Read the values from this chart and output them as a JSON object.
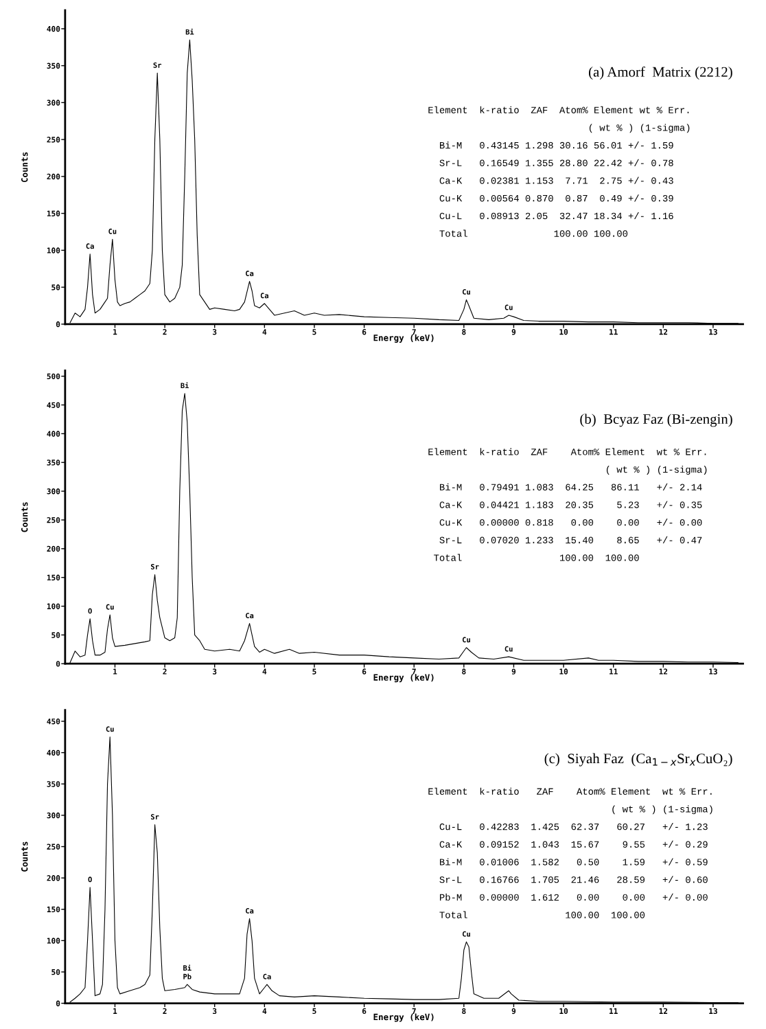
{
  "chart_data": [
    {
      "type": "line",
      "title": "(a) Amorf  Matrix (2212)",
      "xlabel": "Energy (keV)",
      "ylabel": "Counts",
      "xlim": [
        0,
        13.6
      ],
      "ylim": [
        0,
        425
      ],
      "xticks": [
        1,
        2,
        3,
        4,
        5,
        6,
        7,
        8,
        9,
        10,
        11,
        12,
        13
      ],
      "yticks": [
        0,
        50,
        100,
        150,
        200,
        250,
        300,
        350,
        400
      ],
      "grid": false,
      "legend": false,
      "series": [
        {
          "color": "#000000",
          "x": [
            0.1,
            0.2,
            0.3,
            0.4,
            0.45,
            0.5,
            0.55,
            0.6,
            0.7,
            0.8,
            0.85,
            0.9,
            0.95,
            1.0,
            1.05,
            1.1,
            1.2,
            1.3,
            1.4,
            1.5,
            1.6,
            1.7,
            1.75,
            1.8,
            1.85,
            1.9,
            1.95,
            2.0,
            2.1,
            2.2,
            2.3,
            2.35,
            2.4,
            2.45,
            2.5,
            2.55,
            2.6,
            2.65,
            2.7,
            2.8,
            2.9,
            3.0,
            3.2,
            3.4,
            3.5,
            3.6,
            3.7,
            3.75,
            3.8,
            3.9,
            4.0,
            4.1,
            4.2,
            4.4,
            4.6,
            4.8,
            5.0,
            5.2,
            5.5,
            6.0,
            6.5,
            7.0,
            7.5,
            7.9,
            8.0,
            8.05,
            8.1,
            8.2,
            8.5,
            8.8,
            8.9,
            9.0,
            9.2,
            9.5,
            10,
            10.5,
            11,
            11.5,
            12,
            12.5,
            13,
            13.5
          ],
          "values": [
            2,
            15,
            10,
            20,
            50,
            95,
            40,
            15,
            20,
            30,
            35,
            80,
            115,
            60,
            30,
            25,
            28,
            30,
            35,
            40,
            45,
            55,
            100,
            250,
            340,
            250,
            100,
            40,
            30,
            35,
            50,
            80,
            200,
            340,
            385,
            330,
            250,
            120,
            40,
            30,
            20,
            22,
            20,
            18,
            20,
            30,
            58,
            45,
            25,
            22,
            28,
            20,
            12,
            15,
            18,
            12,
            15,
            12,
            13,
            10,
            9,
            8,
            6,
            5,
            20,
            33,
            25,
            8,
            6,
            8,
            12,
            10,
            5,
            4,
            4,
            3,
            3,
            2,
            2,
            2,
            1,
            1
          ]
        }
      ],
      "annotations": [
        {
          "text": "Ca",
          "x": 0.5,
          "y": 95
        },
        {
          "text": "Cu",
          "x": 0.95,
          "y": 115
        },
        {
          "text": "Sr",
          "x": 1.85,
          "y": 340
        },
        {
          "text": "Bi",
          "x": 2.5,
          "y": 385
        },
        {
          "text": "Ca",
          "x": 3.7,
          "y": 58
        },
        {
          "text": "Ca",
          "x": 4.0,
          "y": 28
        },
        {
          "text": "Cu",
          "x": 8.05,
          "y": 33
        },
        {
          "text": "Cu",
          "x": 8.9,
          "y": 12
        },
        "Element  k-ratio  ZAF  Atom% Element wt % Err.",
        "                            ( wt % ) (1-sigma)",
        "  Bi-M   0.43145 1.298 30.16 56.01 +/- 1.59",
        "  Sr-L   0.16549 1.355 28.80 22.42 +/- 0.78",
        "  Ca-K   0.02381 1.153  7.71  2.75 +/- 0.43",
        "  Cu-K   0.00564 0.870  0.87  0.49 +/- 0.39",
        "  Cu-L   0.08913 2.05  32.47 18.34 +/- 1.16",
        "  Total               100.00 100.00"
      ]
    },
    {
      "type": "line",
      "title": "(b)  Bcyaz Faz (Bi-zengin)",
      "xlabel": "Energy (keV)",
      "ylabel": "Counts",
      "xlim": [
        0,
        13.6
      ],
      "ylim": [
        0,
        510
      ],
      "xticks": [
        1,
        2,
        3,
        4,
        5,
        6,
        7,
        8,
        9,
        10,
        11,
        12,
        13
      ],
      "yticks": [
        0,
        50,
        100,
        150,
        200,
        250,
        300,
        350,
        400,
        450,
        500
      ],
      "grid": false,
      "legend": false,
      "series": [
        {
          "color": "#000000",
          "x": [
            0.1,
            0.15,
            0.2,
            0.3,
            0.4,
            0.45,
            0.5,
            0.55,
            0.6,
            0.7,
            0.8,
            0.85,
            0.9,
            0.95,
            1.0,
            1.2,
            1.4,
            1.6,
            1.7,
            1.75,
            1.8,
            1.85,
            1.9,
            2.0,
            2.1,
            2.2,
            2.25,
            2.3,
            2.35,
            2.4,
            2.45,
            2.5,
            2.55,
            2.6,
            2.7,
            2.8,
            3.0,
            3.3,
            3.5,
            3.6,
            3.7,
            3.75,
            3.8,
            3.9,
            4.0,
            4.2,
            4.5,
            4.7,
            5.0,
            5.5,
            6.0,
            6.5,
            7.0,
            7.5,
            7.9,
            8.0,
            8.05,
            8.15,
            8.3,
            8.6,
            8.9,
            9.2,
            9.6,
            10,
            10.5,
            10.7,
            11,
            11.5,
            12,
            12.5,
            13,
            13.5
          ],
          "values": [
            2,
            12,
            22,
            12,
            15,
            50,
            78,
            40,
            15,
            15,
            20,
            60,
            85,
            45,
            30,
            32,
            35,
            38,
            40,
            120,
            155,
            110,
            80,
            45,
            40,
            45,
            80,
            300,
            440,
            470,
            420,
            300,
            150,
            50,
            40,
            25,
            22,
            25,
            22,
            40,
            70,
            50,
            30,
            20,
            25,
            18,
            25,
            18,
            20,
            15,
            15,
            12,
            10,
            8,
            10,
            22,
            28,
            20,
            10,
            8,
            12,
            6,
            6,
            6,
            10,
            6,
            6,
            4,
            4,
            3,
            3,
            2
          ]
        }
      ],
      "annotations": [
        {
          "text": "O",
          "x": 0.5,
          "y": 78
        },
        {
          "text": "Cu",
          "x": 0.9,
          "y": 85
        },
        {
          "text": "Sr",
          "x": 1.8,
          "y": 155
        },
        {
          "text": "Bi",
          "x": 2.4,
          "y": 470
        },
        {
          "text": "Ca",
          "x": 3.7,
          "y": 70
        },
        {
          "text": "Cu",
          "x": 8.05,
          "y": 28
        },
        {
          "text": "Cu",
          "x": 8.9,
          "y": 12
        },
        "Element  k-ratio  ZAF    Atom% Element  wt % Err.",
        "                               ( wt % ) (1-sigma)",
        "  Bi-M   0.79491 1.083  64.25   86.11   +/- 2.14",
        "  Ca-K   0.04421 1.183  20.35    5.23   +/- 0.35",
        "  Cu-K   0.00000 0.818   0.00    0.00   +/- 0.00",
        "  Sr-L   0.07020 1.233  15.40    8.65   +/- 0.47",
        " Total                 100.00  100.00"
      ]
    },
    {
      "type": "line",
      "title": "(c)  Siyah Faz  (Ca$_{1−x}$Sr$_{x}$CuO₂)",
      "xlabel": "Energy (keV)",
      "ylabel": "Counts",
      "xlim": [
        0,
        13.6
      ],
      "ylim": [
        0,
        468
      ],
      "xticks": [
        1,
        2,
        3,
        4,
        5,
        6,
        7,
        8,
        9,
        10,
        11,
        12,
        13
      ],
      "yticks": [
        0,
        50,
        100,
        150,
        200,
        250,
        300,
        350,
        400,
        450
      ],
      "grid": false,
      "legend": false,
      "series": [
        {
          "color": "#000000",
          "x": [
            0.1,
            0.2,
            0.3,
            0.4,
            0.45,
            0.5,
            0.55,
            0.6,
            0.7,
            0.75,
            0.8,
            0.85,
            0.9,
            0.95,
            1.0,
            1.05,
            1.1,
            1.3,
            1.5,
            1.6,
            1.7,
            1.75,
            1.8,
            1.85,
            1.9,
            1.95,
            2.0,
            2.2,
            2.4,
            2.45,
            2.55,
            2.7,
            3.0,
            3.3,
            3.5,
            3.6,
            3.65,
            3.7,
            3.75,
            3.8,
            3.9,
            4.0,
            4.05,
            4.15,
            4.3,
            4.6,
            5.0,
            5.5,
            6.0,
            6.5,
            7.0,
            7.5,
            7.9,
            7.95,
            8.0,
            8.05,
            8.1,
            8.15,
            8.2,
            8.4,
            8.7,
            8.9,
            8.95,
            9.1,
            9.5,
            10,
            11,
            12,
            13,
            13.5
          ],
          "values": [
            2,
            8,
            15,
            25,
            100,
            185,
            100,
            12,
            15,
            30,
            150,
            350,
            425,
            300,
            100,
            25,
            15,
            20,
            25,
            30,
            45,
            150,
            285,
            240,
            120,
            40,
            20,
            22,
            25,
            30,
            22,
            18,
            15,
            15,
            15,
            40,
            110,
            135,
            100,
            40,
            15,
            25,
            30,
            20,
            12,
            10,
            12,
            10,
            8,
            7,
            6,
            6,
            8,
            40,
            85,
            98,
            90,
            50,
            15,
            8,
            8,
            20,
            15,
            5,
            3,
            3,
            2,
            2,
            1,
            1
          ]
        }
      ],
      "annotations": [
        {
          "text": "O",
          "x": 0.5,
          "y": 185
        },
        {
          "text": "Cu",
          "x": 0.9,
          "y": 425
        },
        {
          "text": "Sr",
          "x": 1.8,
          "y": 285
        },
        {
          "text": "Bi",
          "x": 2.45,
          "y": 30
        },
        {
          "text": "Pb",
          "x": 2.45,
          "y": 30
        },
        {
          "text": "Ca",
          "x": 3.7,
          "y": 135
        },
        {
          "text": "Ca",
          "x": 4.05,
          "y": 30
        },
        {
          "text": "Cu",
          "x": 8.05,
          "y": 98
        },
        "Element  k-ratio   ZAF    Atom% Element  wt % Err.",
        "                                ( wt % ) (1-sigma)",
        "  Cu-L   0.42283  1.425  62.37   60.27   +/- 1.23",
        "  Ca-K   0.09152  1.043  15.67    9.55   +/- 0.29",
        "  Bi-M   0.01006  1.582   0.50    1.59   +/- 0.59",
        "  Sr-L   0.16766  1.705  21.46   28.59   +/- 0.60",
        "  Pb-M   0.00000  1.612   0.00    0.00   +/- 0.00",
        "  Total                 100.00  100.00"
      ]
    }
  ]
}
